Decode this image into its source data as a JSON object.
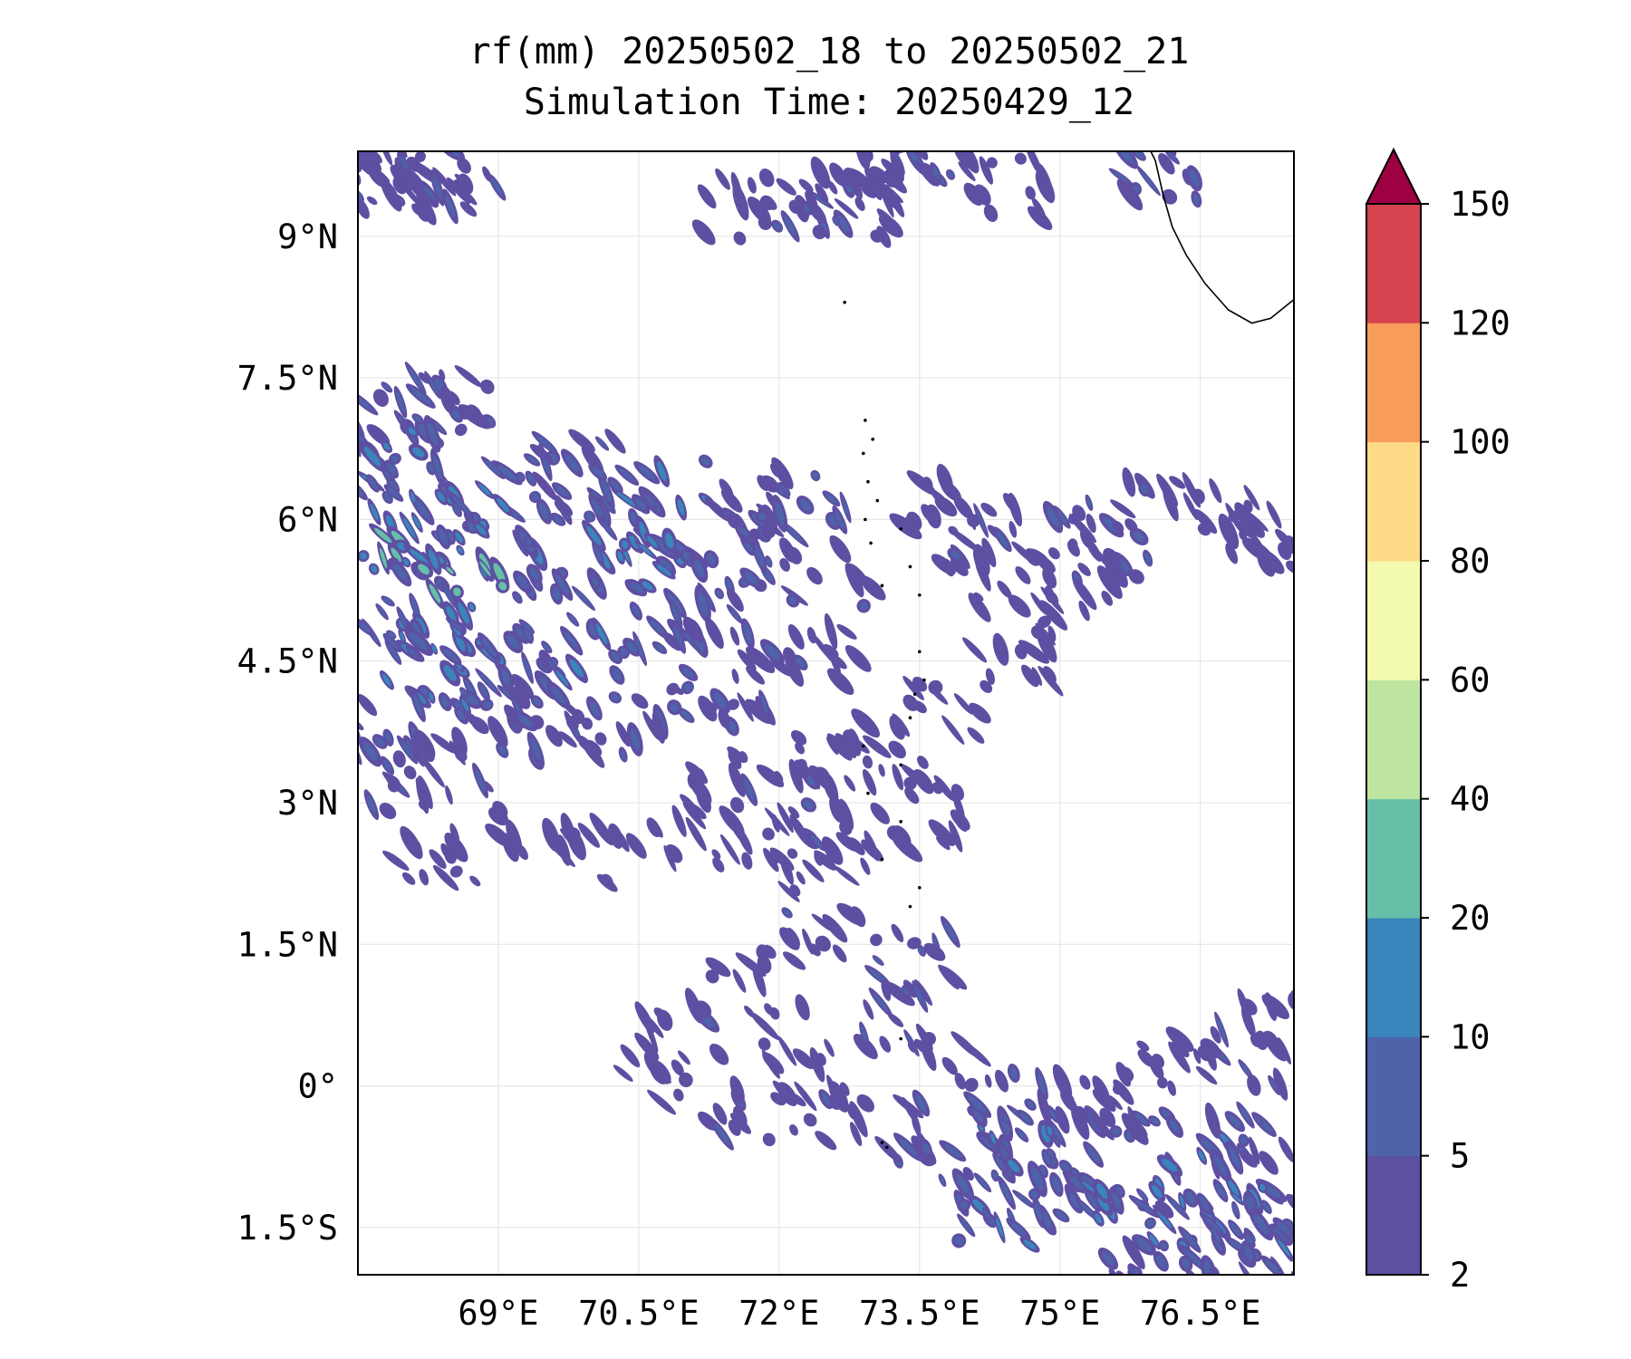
{
  "title": {
    "line1": "rf(mm) 20250502_18 to 20250502_21",
    "line2": "Simulation Time: 20250429_12"
  },
  "map": {
    "lon_range": [
      67.5,
      77.5
    ],
    "lat_range": [
      -2.0,
      9.9
    ],
    "lon_ticks": [
      {
        "value": 69.0,
        "label": "69°E"
      },
      {
        "value": 70.5,
        "label": "70.5°E"
      },
      {
        "value": 72.0,
        "label": "72°E"
      },
      {
        "value": 73.5,
        "label": "73.5°E"
      },
      {
        "value": 75.0,
        "label": "75°E"
      },
      {
        "value": 76.5,
        "label": "76.5°E"
      }
    ],
    "lat_ticks": [
      {
        "value": 9.0,
        "label": "9°N"
      },
      {
        "value": 7.5,
        "label": "7.5°N"
      },
      {
        "value": 6.0,
        "label": "6°N"
      },
      {
        "value": 4.5,
        "label": "4.5°N"
      },
      {
        "value": 3.0,
        "label": "3°N"
      },
      {
        "value": 1.5,
        "label": "1.5°N"
      },
      {
        "value": 0.0,
        "label": "0°"
      },
      {
        "value": -1.5,
        "label": "1.5°S"
      }
    ],
    "grid": true,
    "coastline_color": "#000000",
    "india_coast": [
      [
        77.5,
        8.33
      ],
      [
        77.25,
        8.13
      ],
      [
        77.05,
        8.08
      ],
      [
        76.8,
        8.22
      ],
      [
        76.55,
        8.5
      ],
      [
        76.35,
        8.8
      ],
      [
        76.2,
        9.1
      ],
      [
        76.1,
        9.45
      ],
      [
        76.02,
        9.8
      ],
      [
        75.97,
        9.9
      ]
    ],
    "islands": [
      {
        "lon": 72.7,
        "lat": 8.3
      },
      {
        "lon": 72.92,
        "lat": 7.05
      },
      {
        "lon": 73.0,
        "lat": 6.85
      },
      {
        "lon": 72.9,
        "lat": 6.7
      },
      {
        "lon": 72.95,
        "lat": 6.4
      },
      {
        "lon": 73.05,
        "lat": 6.2
      },
      {
        "lon": 72.92,
        "lat": 6.0
      },
      {
        "lon": 73.3,
        "lat": 5.9
      },
      {
        "lon": 72.98,
        "lat": 5.75
      },
      {
        "lon": 73.4,
        "lat": 5.5
      },
      {
        "lon": 73.1,
        "lat": 5.3
      },
      {
        "lon": 73.5,
        "lat": 5.2
      },
      {
        "lon": 73.5,
        "lat": 4.6
      },
      {
        "lon": 73.55,
        "lat": 4.3
      },
      {
        "lon": 73.45,
        "lat": 4.15
      },
      {
        "lon": 73.4,
        "lat": 3.9
      },
      {
        "lon": 72.9,
        "lat": 3.6
      },
      {
        "lon": 73.3,
        "lat": 3.4
      },
      {
        "lon": 72.95,
        "lat": 3.1
      },
      {
        "lon": 73.3,
        "lat": 2.8
      },
      {
        "lon": 73.1,
        "lat": 2.4
      },
      {
        "lon": 73.5,
        "lat": 2.1
      },
      {
        "lon": 73.4,
        "lat": 1.9
      },
      {
        "lon": 73.3,
        "lat": 0.5
      },
      {
        "lon": 73.1,
        "lat": -0.6
      },
      {
        "lon": 73.15,
        "lat": -0.65
      }
    ]
  },
  "rainfall": {
    "units": "mm",
    "levels": [
      2,
      5,
      10,
      20,
      40,
      60,
      80,
      100,
      120,
      150
    ],
    "level_colors": [
      "#5e4fa2",
      "#4e63aa",
      "#3a85bb",
      "#65c0a7",
      "#bde5a0",
      "#f3f9ae",
      "#fddb87",
      "#f89c59",
      "#d5444f"
    ],
    "extend_color": "#9e0142",
    "extend_max": true,
    "regions_description_note": "",
    "cells": [
      {
        "lon": 67.6,
        "lat": 9.6,
        "v": 6
      },
      {
        "lon": 67.9,
        "lat": 9.6,
        "v": 5
      },
      {
        "lon": 68.2,
        "lat": 9.55,
        "v": 4
      },
      {
        "lon": 68.6,
        "lat": 9.6,
        "v": 5
      },
      {
        "lon": 73.6,
        "lat": 9.7,
        "v": 6
      },
      {
        "lon": 73.3,
        "lat": 9.8,
        "v": 5
      },
      {
        "lon": 72.9,
        "lat": 9.55,
        "v": 5
      },
      {
        "lon": 72.4,
        "lat": 9.3,
        "v": 6
      },
      {
        "lon": 72.8,
        "lat": 9.2,
        "v": 4
      },
      {
        "lon": 71.6,
        "lat": 9.3,
        "v": 3
      },
      {
        "lon": 76.1,
        "lat": 9.6,
        "v": 5
      },
      {
        "lon": 74.4,
        "lat": 9.5,
        "v": 3
      },
      {
        "lon": 67.7,
        "lat": 7.0,
        "v": 8
      },
      {
        "lon": 68.1,
        "lat": 7.1,
        "v": 6
      },
      {
        "lon": 68.5,
        "lat": 7.2,
        "v": 5
      },
      {
        "lon": 67.7,
        "lat": 6.6,
        "v": 12
      },
      {
        "lon": 68.0,
        "lat": 6.3,
        "v": 9
      },
      {
        "lon": 68.4,
        "lat": 6.0,
        "v": 18
      },
      {
        "lon": 67.7,
        "lat": 5.9,
        "v": 24
      },
      {
        "lon": 68.1,
        "lat": 5.5,
        "v": 12
      },
      {
        "lon": 68.6,
        "lat": 5.3,
        "v": 22
      },
      {
        "lon": 69.0,
        "lat": 5.9,
        "v": 11
      },
      {
        "lon": 69.4,
        "lat": 6.3,
        "v": 8
      },
      {
        "lon": 69.8,
        "lat": 6.5,
        "v": 6
      },
      {
        "lon": 70.3,
        "lat": 6.2,
        "v": 9
      },
      {
        "lon": 70.8,
        "lat": 5.9,
        "v": 14
      },
      {
        "lon": 71.2,
        "lat": 5.5,
        "v": 8
      },
      {
        "lon": 70.4,
        "lat": 5.6,
        "v": 12
      },
      {
        "lon": 69.6,
        "lat": 5.1,
        "v": 9
      },
      {
        "lon": 68.9,
        "lat": 4.7,
        "v": 13
      },
      {
        "lon": 68.2,
        "lat": 4.6,
        "v": 16
      },
      {
        "lon": 67.7,
        "lat": 4.9,
        "v": 9
      },
      {
        "lon": 69.3,
        "lat": 4.4,
        "v": 8
      },
      {
        "lon": 70.0,
        "lat": 4.5,
        "v": 11
      },
      {
        "lon": 70.7,
        "lat": 4.8,
        "v": 7
      },
      {
        "lon": 71.5,
        "lat": 5.0,
        "v": 6
      },
      {
        "lon": 71.9,
        "lat": 5.7,
        "v": 7
      },
      {
        "lon": 72.3,
        "lat": 6.2,
        "v": 6
      },
      {
        "lon": 71.6,
        "lat": 6.3,
        "v": 5
      },
      {
        "lon": 72.6,
        "lat": 5.4,
        "v": 5
      },
      {
        "lon": 68.4,
        "lat": 3.9,
        "v": 10
      },
      {
        "lon": 67.9,
        "lat": 3.7,
        "v": 8
      },
      {
        "lon": 69.0,
        "lat": 3.8,
        "v": 7
      },
      {
        "lon": 69.7,
        "lat": 3.9,
        "v": 6
      },
      {
        "lon": 70.4,
        "lat": 3.8,
        "v": 5
      },
      {
        "lon": 71.1,
        "lat": 4.1,
        "v": 6
      },
      {
        "lon": 71.8,
        "lat": 4.3,
        "v": 5
      },
      {
        "lon": 72.4,
        "lat": 4.6,
        "v": 4
      },
      {
        "lon": 67.8,
        "lat": 3.2,
        "v": 6
      },
      {
        "lon": 68.6,
        "lat": 3.3,
        "v": 5
      },
      {
        "lon": 71.3,
        "lat": 3.2,
        "v": 5
      },
      {
        "lon": 72.0,
        "lat": 3.0,
        "v": 5
      },
      {
        "lon": 72.6,
        "lat": 3.4,
        "v": 4
      },
      {
        "lon": 73.2,
        "lat": 3.6,
        "v": 4
      },
      {
        "lon": 73.0,
        "lat": 2.6,
        "v": 5
      },
      {
        "lon": 72.4,
        "lat": 2.3,
        "v": 5
      },
      {
        "lon": 71.7,
        "lat": 2.5,
        "v": 4
      },
      {
        "lon": 70.9,
        "lat": 2.7,
        "v": 4
      },
      {
        "lon": 70.1,
        "lat": 2.4,
        "v": 4
      },
      {
        "lon": 69.4,
        "lat": 2.6,
        "v": 4
      },
      {
        "lon": 68.3,
        "lat": 2.4,
        "v": 4
      },
      {
        "lon": 73.5,
        "lat": 2.9,
        "v": 4
      },
      {
        "lon": 72.5,
        "lat": 1.6,
        "v": 5
      },
      {
        "lon": 73.4,
        "lat": 1.3,
        "v": 5
      },
      {
        "lon": 71.5,
        "lat": 1.1,
        "v": 4
      },
      {
        "lon": 71.0,
        "lat": 0.6,
        "v": 5
      },
      {
        "lon": 72.1,
        "lat": 0.5,
        "v": 4
      },
      {
        "lon": 73.2,
        "lat": 0.7,
        "v": 5
      },
      {
        "lon": 73.7,
        "lat": 0.2,
        "v": 4
      },
      {
        "lon": 70.7,
        "lat": 0.1,
        "v": 4
      },
      {
        "lon": 71.6,
        "lat": -0.3,
        "v": 5
      },
      {
        "lon": 72.4,
        "lat": -0.3,
        "v": 5
      },
      {
        "lon": 73.2,
        "lat": -0.5,
        "v": 5
      },
      {
        "lon": 74.0,
        "lat": -0.9,
        "v": 9
      },
      {
        "lon": 74.6,
        "lat": -0.6,
        "v": 12
      },
      {
        "lon": 75.2,
        "lat": -0.9,
        "v": 8
      },
      {
        "lon": 75.8,
        "lat": -0.6,
        "v": 7
      },
      {
        "lon": 76.4,
        "lat": -0.9,
        "v": 11
      },
      {
        "lon": 77.0,
        "lat": -0.6,
        "v": 8
      },
      {
        "lon": 77.4,
        "lat": -1.0,
        "v": 6
      },
      {
        "lon": 74.3,
        "lat": -1.4,
        "v": 10
      },
      {
        "lon": 75.0,
        "lat": -1.3,
        "v": 8
      },
      {
        "lon": 75.7,
        "lat": -1.4,
        "v": 14
      },
      {
        "lon": 76.3,
        "lat": -1.6,
        "v": 9
      },
      {
        "lon": 77.0,
        "lat": -1.4,
        "v": 12
      },
      {
        "lon": 77.3,
        "lat": -1.8,
        "v": 9
      },
      {
        "lon": 76.7,
        "lat": -1.8,
        "v": 8
      },
      {
        "lon": 75.9,
        "lat": -1.9,
        "v": 6
      },
      {
        "lon": 74.5,
        "lat": -0.1,
        "v": 6
      },
      {
        "lon": 75.3,
        "lat": -0.1,
        "v": 5
      },
      {
        "lon": 76.1,
        "lat": 0.2,
        "v": 5
      },
      {
        "lon": 76.9,
        "lat": 0.3,
        "v": 5
      },
      {
        "lon": 77.3,
        "lat": 0.6,
        "v": 4
      },
      {
        "lon": 74.9,
        "lat": 5.9,
        "v": 6
      },
      {
        "lon": 75.5,
        "lat": 5.7,
        "v": 5
      },
      {
        "lon": 76.1,
        "lat": 6.1,
        "v": 5
      },
      {
        "lon": 76.7,
        "lat": 6.0,
        "v": 4
      },
      {
        "lon": 77.2,
        "lat": 5.8,
        "v": 4
      },
      {
        "lon": 74.2,
        "lat": 5.8,
        "v": 5
      },
      {
        "lon": 73.8,
        "lat": 6.1,
        "v": 4
      },
      {
        "lon": 74.5,
        "lat": 5.3,
        "v": 4
      },
      {
        "lon": 75.1,
        "lat": 5.3,
        "v": 3
      },
      {
        "lon": 73.8,
        "lat": 4.0,
        "v": 3
      },
      {
        "lon": 74.5,
        "lat": 4.6,
        "v": 3
      }
    ]
  },
  "colorbar": {
    "tick_labels": [
      "2",
      "5",
      "10",
      "20",
      "40",
      "60",
      "80",
      "100",
      "120",
      "150"
    ]
  }
}
